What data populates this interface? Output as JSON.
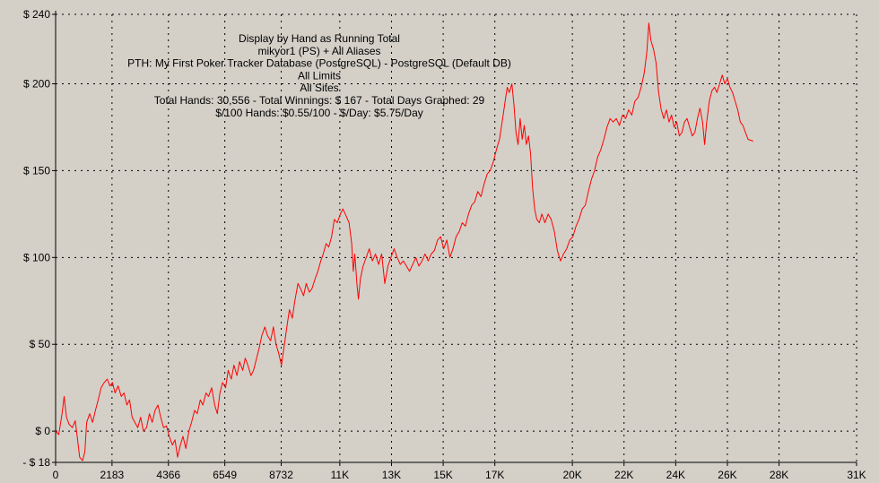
{
  "chart_data": {
    "type": "line",
    "title_lines": [
      "Display by Hand as Running Total",
      "mikyor1 (PS) + All Aliases",
      "PTH: My First Poker Tracker Database (PostgreSQL) - PostgreSQL (Default DB)",
      "All Limits",
      "All Sites",
      "Total Hands: 30,556 - Total Winnings: $ 167 - Total Days Graphed: 29",
      "$/100 Hands: $0.55/100 - $/Day: $5.75/Day"
    ],
    "xlim": [
      0,
      31000
    ],
    "ylim": [
      -18,
      240
    ],
    "x_ticks": [
      {
        "value": 0,
        "label": "0"
      },
      {
        "value": 2183,
        "label": "2183"
      },
      {
        "value": 4366,
        "label": "4366"
      },
      {
        "value": 6549,
        "label": "6549"
      },
      {
        "value": 8732,
        "label": "8732"
      },
      {
        "value": 11000,
        "label": "11K"
      },
      {
        "value": 13000,
        "label": "13K"
      },
      {
        "value": 15000,
        "label": "15K"
      },
      {
        "value": 17000,
        "label": "17K"
      },
      {
        "value": 20000,
        "label": "20K"
      },
      {
        "value": 22000,
        "label": "22K"
      },
      {
        "value": 24000,
        "label": "24K"
      },
      {
        "value": 26000,
        "label": "26K"
      },
      {
        "value": 28000,
        "label": "28K"
      },
      {
        "value": 31000,
        "label": "31K"
      }
    ],
    "y_ticks": [
      {
        "value": 240,
        "label": "$ 240"
      },
      {
        "value": 200,
        "label": "$ 200"
      },
      {
        "value": 150,
        "label": "$ 150"
      },
      {
        "value": 100,
        "label": "$ 100"
      },
      {
        "value": 50,
        "label": "$ 50"
      },
      {
        "value": 0,
        "label": "$ 0"
      },
      {
        "value": -18,
        "label": "- $ 18"
      }
    ],
    "grid": true,
    "series": [
      {
        "color": "#ff0000",
        "points": [
          [
            0,
            0
          ],
          [
            120,
            -2
          ],
          [
            250,
            10
          ],
          [
            330,
            20
          ],
          [
            420,
            8
          ],
          [
            520,
            4
          ],
          [
            650,
            2
          ],
          [
            760,
            6
          ],
          [
            850,
            -5
          ],
          [
            930,
            -15
          ],
          [
            1040,
            -17
          ],
          [
            1130,
            -12
          ],
          [
            1200,
            5
          ],
          [
            1320,
            10
          ],
          [
            1430,
            5
          ],
          [
            1540,
            12
          ],
          [
            1650,
            18
          ],
          [
            1760,
            25
          ],
          [
            1880,
            28
          ],
          [
            2000,
            30
          ],
          [
            2100,
            26
          ],
          [
            2200,
            28
          ],
          [
            2300,
            22
          ],
          [
            2420,
            26
          ],
          [
            2540,
            20
          ],
          [
            2650,
            22
          ],
          [
            2760,
            15
          ],
          [
            2860,
            18
          ],
          [
            2960,
            8
          ],
          [
            3070,
            5
          ],
          [
            3180,
            2
          ],
          [
            3290,
            8
          ],
          [
            3400,
            0
          ],
          [
            3520,
            2
          ],
          [
            3630,
            10
          ],
          [
            3740,
            5
          ],
          [
            3850,
            12
          ],
          [
            3960,
            15
          ],
          [
            4070,
            8
          ],
          [
            4180,
            2
          ],
          [
            4290,
            3
          ],
          [
            4400,
            -3
          ],
          [
            4520,
            -8
          ],
          [
            4620,
            -5
          ],
          [
            4720,
            -15
          ],
          [
            4830,
            -8
          ],
          [
            4930,
            -3
          ],
          [
            5040,
            -10
          ],
          [
            5160,
            0
          ],
          [
            5260,
            5
          ],
          [
            5380,
            12
          ],
          [
            5480,
            10
          ],
          [
            5600,
            18
          ],
          [
            5700,
            15
          ],
          [
            5820,
            22
          ],
          [
            5920,
            20
          ],
          [
            6040,
            25
          ],
          [
            6160,
            15
          ],
          [
            6260,
            10
          ],
          [
            6360,
            22
          ],
          [
            6460,
            28
          ],
          [
            6580,
            25
          ],
          [
            6680,
            35
          ],
          [
            6800,
            30
          ],
          [
            6900,
            38
          ],
          [
            7020,
            32
          ],
          [
            7120,
            40
          ],
          [
            7240,
            35
          ],
          [
            7340,
            42
          ],
          [
            7440,
            38
          ],
          [
            7560,
            32
          ],
          [
            7660,
            35
          ],
          [
            7780,
            42
          ],
          [
            7880,
            48
          ],
          [
            7980,
            55
          ],
          [
            8100,
            60
          ],
          [
            8200,
            55
          ],
          [
            8320,
            52
          ],
          [
            8430,
            60
          ],
          [
            8530,
            50
          ],
          [
            8630,
            45
          ],
          [
            8740,
            38
          ],
          [
            8840,
            48
          ],
          [
            8950,
            60
          ],
          [
            9050,
            70
          ],
          [
            9160,
            65
          ],
          [
            9260,
            75
          ],
          [
            9380,
            85
          ],
          [
            9480,
            82
          ],
          [
            9600,
            78
          ],
          [
            9700,
            85
          ],
          [
            9820,
            80
          ],
          [
            9920,
            82
          ],
          [
            10050,
            88
          ],
          [
            10150,
            92
          ],
          [
            10260,
            98
          ],
          [
            10360,
            102
          ],
          [
            10470,
            108
          ],
          [
            10570,
            106
          ],
          [
            10680,
            112
          ],
          [
            10790,
            122
          ],
          [
            10900,
            120
          ],
          [
            11020,
            125
          ],
          [
            11120,
            128
          ],
          [
            11240,
            124
          ],
          [
            11360,
            120
          ],
          [
            11460,
            108
          ],
          [
            11520,
            92
          ],
          [
            11580,
            102
          ],
          [
            11660,
            85
          ],
          [
            11720,
            76
          ],
          [
            11800,
            88
          ],
          [
            11900,
            95
          ],
          [
            12020,
            100
          ],
          [
            12140,
            105
          ],
          [
            12260,
            98
          ],
          [
            12380,
            102
          ],
          [
            12500,
            96
          ],
          [
            12620,
            102
          ],
          [
            12740,
            85
          ],
          [
            12860,
            95
          ],
          [
            12980,
            100
          ],
          [
            13100,
            105
          ],
          [
            13220,
            100
          ],
          [
            13340,
            96
          ],
          [
            13460,
            98
          ],
          [
            13580,
            95
          ],
          [
            13700,
            92
          ],
          [
            13820,
            96
          ],
          [
            13940,
            100
          ],
          [
            14060,
            95
          ],
          [
            14180,
            98
          ],
          [
            14300,
            102
          ],
          [
            14420,
            98
          ],
          [
            14540,
            102
          ],
          [
            14660,
            104
          ],
          [
            14780,
            110
          ],
          [
            14900,
            112
          ],
          [
            15020,
            105
          ],
          [
            15140,
            110
          ],
          [
            15260,
            100
          ],
          [
            15380,
            105
          ],
          [
            15500,
            112
          ],
          [
            15620,
            115
          ],
          [
            15740,
            120
          ],
          [
            15860,
            118
          ],
          [
            15980,
            125
          ],
          [
            16100,
            130
          ],
          [
            16220,
            132
          ],
          [
            16340,
            138
          ],
          [
            16460,
            135
          ],
          [
            16580,
            142
          ],
          [
            16700,
            148
          ],
          [
            16820,
            150
          ],
          [
            16940,
            155
          ],
          [
            17060,
            162
          ],
          [
            17180,
            168
          ],
          [
            17300,
            180
          ],
          [
            17400,
            190
          ],
          [
            17480,
            198
          ],
          [
            17560,
            195
          ],
          [
            17660,
            200
          ],
          [
            17740,
            188
          ],
          [
            17820,
            172
          ],
          [
            17900,
            165
          ],
          [
            17980,
            180
          ],
          [
            18060,
            168
          ],
          [
            18140,
            176
          ],
          [
            18220,
            165
          ],
          [
            18300,
            170
          ],
          [
            18380,
            160
          ],
          [
            18460,
            140
          ],
          [
            18540,
            128
          ],
          [
            18620,
            122
          ],
          [
            18720,
            120
          ],
          [
            18820,
            125
          ],
          [
            18940,
            120
          ],
          [
            19060,
            125
          ],
          [
            19180,
            122
          ],
          [
            19300,
            115
          ],
          [
            19420,
            104
          ],
          [
            19540,
            98
          ],
          [
            19660,
            102
          ],
          [
            19780,
            105
          ],
          [
            19900,
            110
          ],
          [
            20020,
            112
          ],
          [
            20140,
            118
          ],
          [
            20260,
            122
          ],
          [
            20380,
            128
          ],
          [
            20500,
            130
          ],
          [
            20620,
            138
          ],
          [
            20740,
            145
          ],
          [
            20860,
            150
          ],
          [
            20980,
            158
          ],
          [
            21100,
            162
          ],
          [
            21220,
            168
          ],
          [
            21340,
            175
          ],
          [
            21460,
            180
          ],
          [
            21580,
            178
          ],
          [
            21700,
            180
          ],
          [
            21820,
            176
          ],
          [
            21940,
            182
          ],
          [
            22060,
            180
          ],
          [
            22180,
            185
          ],
          [
            22300,
            182
          ],
          [
            22420,
            190
          ],
          [
            22540,
            192
          ],
          [
            22660,
            198
          ],
          [
            22780,
            206
          ],
          [
            22880,
            218
          ],
          [
            22960,
            235
          ],
          [
            23040,
            225
          ],
          [
            23140,
            220
          ],
          [
            23240,
            212
          ],
          [
            23340,
            195
          ],
          [
            23440,
            185
          ],
          [
            23540,
            180
          ],
          [
            23640,
            185
          ],
          [
            23740,
            178
          ],
          [
            23840,
            182
          ],
          [
            23940,
            175
          ],
          [
            24040,
            178
          ],
          [
            24140,
            170
          ],
          [
            24240,
            172
          ],
          [
            24340,
            178
          ],
          [
            24440,
            180
          ],
          [
            24540,
            175
          ],
          [
            24640,
            170
          ],
          [
            24740,
            172
          ],
          [
            24840,
            180
          ],
          [
            24940,
            186
          ],
          [
            25040,
            178
          ],
          [
            25120,
            165
          ],
          [
            25200,
            178
          ],
          [
            25300,
            190
          ],
          [
            25400,
            196
          ],
          [
            25500,
            198
          ],
          [
            25600,
            195
          ],
          [
            25700,
            200
          ],
          [
            25800,
            205
          ],
          [
            25900,
            200
          ],
          [
            26000,
            203
          ],
          [
            26100,
            198
          ],
          [
            26200,
            195
          ],
          [
            26300,
            190
          ],
          [
            26400,
            185
          ],
          [
            26500,
            178
          ],
          [
            26600,
            176
          ],
          [
            26700,
            172
          ],
          [
            26800,
            168
          ],
          [
            27000,
            167
          ]
        ]
      }
    ]
  }
}
